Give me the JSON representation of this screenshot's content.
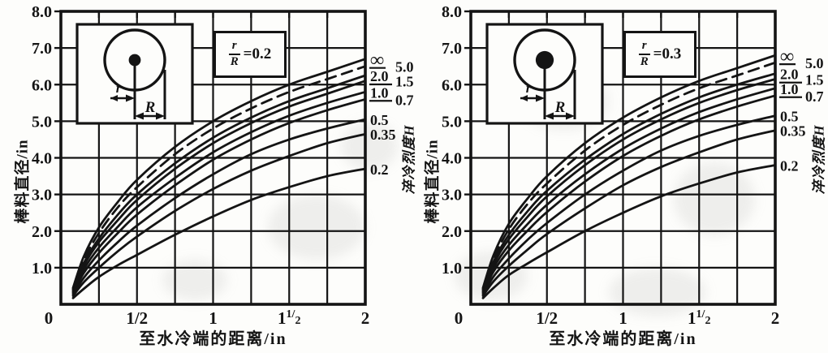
{
  "figure": {
    "background": "#fdfdfb",
    "ink": "#141414"
  },
  "chart_data": [
    {
      "type": "line",
      "title": "",
      "xlabel": "至水冷端的距离/in",
      "ylabel": "棒料直径/in",
      "right_axis_label": "淬冷烈度H",
      "inset_ratio": {
        "numerator": "r",
        "denominator": "R",
        "value_text": "=0.2",
        "value": 0.2
      },
      "inset_labels": {
        "r": "r",
        "R": "R"
      },
      "xlim": [
        0,
        2
      ],
      "ylim": [
        0,
        8
      ],
      "grid": true,
      "grid_step_x": 0.25,
      "grid_step_y": 1.0,
      "x_ticks": [
        {
          "v": 0,
          "label": "0"
        },
        {
          "v": 0.5,
          "label": "1/2"
        },
        {
          "v": 1,
          "label": "1"
        },
        {
          "v": 1.5,
          "label": "1^1/2"
        },
        {
          "v": 2,
          "label": "2"
        }
      ],
      "y_ticks": [
        {
          "v": 8,
          "label": "8.0"
        },
        {
          "v": 7,
          "label": "7.0"
        },
        {
          "v": 6,
          "label": "6.0"
        },
        {
          "v": 5,
          "label": "5.0"
        },
        {
          "v": 4,
          "label": "4.0"
        },
        {
          "v": 3,
          "label": "3.0"
        },
        {
          "v": 2,
          "label": "2.0"
        },
        {
          "v": 1,
          "label": "1.0"
        }
      ],
      "x": [
        0.08,
        0.15,
        0.25,
        0.375,
        0.5,
        0.75,
        1.0,
        1.25,
        1.5,
        1.75,
        2.0
      ],
      "series": [
        {
          "name": "∞",
          "dashed": false,
          "underline": true,
          "label_column": "inner",
          "values": [
            0.45,
            1.3,
            2.1,
            2.8,
            3.4,
            4.3,
            5.0,
            5.55,
            6.0,
            6.35,
            6.7
          ]
        },
        {
          "name": "5.0",
          "dashed": true,
          "underline": false,
          "label_column": "outer",
          "values": [
            0.42,
            1.2,
            1.95,
            2.65,
            3.2,
            4.1,
            4.8,
            5.35,
            5.8,
            6.15,
            6.5
          ]
        },
        {
          "name": "2.0",
          "dashed": false,
          "underline": true,
          "label_column": "inner",
          "values": [
            0.4,
            1.12,
            1.8,
            2.45,
            3.0,
            3.85,
            4.55,
            5.1,
            5.55,
            5.9,
            6.25
          ]
        },
        {
          "name": "1.5",
          "dashed": false,
          "underline": false,
          "label_column": "outer",
          "values": [
            0.37,
            1.05,
            1.7,
            2.3,
            2.85,
            3.7,
            4.4,
            4.95,
            5.4,
            5.75,
            6.1
          ]
        },
        {
          "name": "1.0",
          "dashed": false,
          "underline": true,
          "label_column": "inner",
          "values": [
            0.34,
            0.95,
            1.55,
            2.12,
            2.65,
            3.45,
            4.15,
            4.7,
            5.15,
            5.5,
            5.8
          ]
        },
        {
          "name": "0.7",
          "dashed": false,
          "underline": false,
          "label_column": "outer",
          "values": [
            0.31,
            0.85,
            1.4,
            1.95,
            2.45,
            3.25,
            3.95,
            4.5,
            4.95,
            5.3,
            5.6
          ]
        },
        {
          "name": "0.5",
          "dashed": false,
          "underline": false,
          "label_column": "inner",
          "values": [
            0.27,
            0.72,
            1.2,
            1.7,
            2.15,
            2.9,
            3.55,
            4.1,
            4.5,
            4.8,
            5.05
          ]
        },
        {
          "name": "0.35",
          "dashed": false,
          "underline": false,
          "label_column": "inner",
          "values": [
            0.23,
            0.6,
            1.0,
            1.45,
            1.85,
            2.55,
            3.15,
            3.65,
            4.05,
            4.4,
            4.65
          ]
        },
        {
          "name": "0.2",
          "dashed": false,
          "underline": false,
          "label_column": "inner",
          "values": [
            0.17,
            0.42,
            0.75,
            1.07,
            1.35,
            1.9,
            2.4,
            2.85,
            3.2,
            3.5,
            3.7
          ]
        }
      ]
    },
    {
      "type": "line",
      "title": "",
      "xlabel": "至水冷端的距离/in",
      "ylabel": "棒料直径/in",
      "right_axis_label": "淬冷烈度H",
      "inset_ratio": {
        "numerator": "r",
        "denominator": "R",
        "value_text": "=0.3",
        "value": 0.3
      },
      "inset_labels": {
        "r": "r",
        "R": "R"
      },
      "xlim": [
        0,
        2
      ],
      "ylim": [
        0,
        8
      ],
      "grid": true,
      "grid_step_x": 0.25,
      "grid_step_y": 1.0,
      "x_ticks": [
        {
          "v": 0,
          "label": "0"
        },
        {
          "v": 0.5,
          "label": "1/2"
        },
        {
          "v": 1,
          "label": "1"
        },
        {
          "v": 1.5,
          "label": "1^1/2"
        },
        {
          "v": 2,
          "label": "2"
        }
      ],
      "y_ticks": [
        {
          "v": 8,
          "label": "8.0"
        },
        {
          "v": 7,
          "label": "7.0"
        },
        {
          "v": 6,
          "label": "6.0"
        },
        {
          "v": 5,
          "label": "5.0"
        },
        {
          "v": 4,
          "label": "4.0"
        },
        {
          "v": 3,
          "label": "3.0"
        },
        {
          "v": 2,
          "label": "2.0"
        },
        {
          "v": 1,
          "label": "1.0"
        }
      ],
      "x": [
        0.08,
        0.15,
        0.25,
        0.375,
        0.5,
        0.75,
        1.0,
        1.25,
        1.5,
        1.75,
        2.0
      ],
      "series": [
        {
          "name": "∞",
          "dashed": false,
          "underline": true,
          "label_column": "inner",
          "values": [
            0.45,
            1.35,
            2.2,
            2.9,
            3.5,
            4.4,
            5.1,
            5.65,
            6.1,
            6.45,
            6.8
          ]
        },
        {
          "name": "5.0",
          "dashed": true,
          "underline": false,
          "label_column": "outer",
          "values": [
            0.42,
            1.25,
            2.05,
            2.75,
            3.3,
            4.2,
            4.9,
            5.45,
            5.9,
            6.25,
            6.6
          ]
        },
        {
          "name": "2.0",
          "dashed": false,
          "underline": true,
          "label_column": "inner",
          "values": [
            0.4,
            1.17,
            1.9,
            2.55,
            3.1,
            3.95,
            4.65,
            5.2,
            5.65,
            6.0,
            6.3
          ]
        },
        {
          "name": "1.5",
          "dashed": false,
          "underline": false,
          "label_column": "outer",
          "values": [
            0.37,
            1.1,
            1.78,
            2.4,
            2.95,
            3.8,
            4.5,
            5.05,
            5.5,
            5.85,
            6.15
          ]
        },
        {
          "name": "1.0",
          "dashed": false,
          "underline": true,
          "label_column": "inner",
          "values": [
            0.34,
            1.0,
            1.62,
            2.2,
            2.72,
            3.55,
            4.25,
            4.8,
            5.25,
            5.6,
            5.9
          ]
        },
        {
          "name": "0.7",
          "dashed": false,
          "underline": false,
          "label_column": "outer",
          "values": [
            0.31,
            0.9,
            1.47,
            2.02,
            2.52,
            3.35,
            4.05,
            4.6,
            5.05,
            5.4,
            5.7
          ]
        },
        {
          "name": "0.5",
          "dashed": false,
          "underline": false,
          "label_column": "inner",
          "values": [
            0.27,
            0.76,
            1.25,
            1.77,
            2.22,
            3.0,
            3.65,
            4.2,
            4.6,
            4.9,
            5.15
          ]
        },
        {
          "name": "0.35",
          "dashed": false,
          "underline": false,
          "label_column": "inner",
          "values": [
            0.23,
            0.63,
            1.05,
            1.5,
            1.92,
            2.62,
            3.25,
            3.75,
            4.15,
            4.5,
            4.75
          ]
        },
        {
          "name": "0.2",
          "dashed": false,
          "underline": false,
          "label_column": "inner",
          "values": [
            0.17,
            0.45,
            0.8,
            1.12,
            1.42,
            2.0,
            2.5,
            2.95,
            3.3,
            3.6,
            3.8
          ]
        }
      ]
    }
  ]
}
